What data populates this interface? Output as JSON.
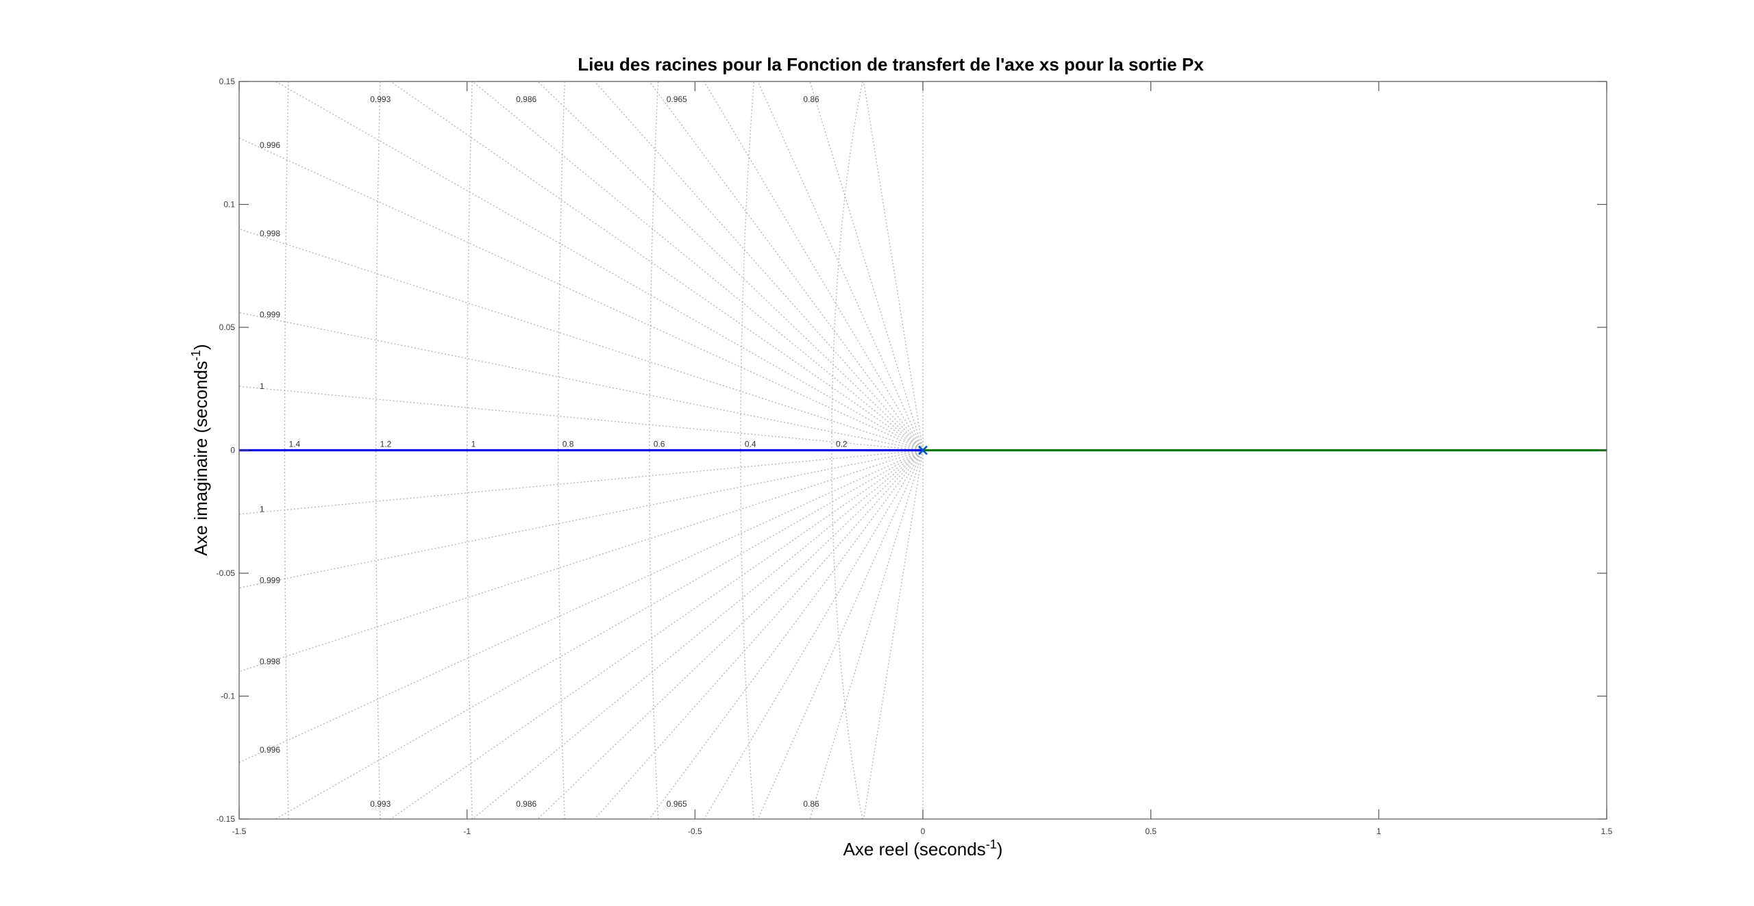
{
  "chart_data": {
    "type": "line",
    "title": "Lieu des racines pour la Fonction de transfert de l'axe xs pour la sortie Px",
    "xlabel": "Axe reel (seconds",
    "xlabel_exp": "-1",
    "xlabel_close": ")",
    "ylabel": "Axe imaginaire (seconds",
    "ylabel_exp": "-1",
    "ylabel_close": ")",
    "xlim": [
      -1.5,
      1.5
    ],
    "ylim": [
      -0.15,
      0.15
    ],
    "xticks": [
      -1.5,
      -1,
      -0.5,
      0,
      0.5,
      1,
      1.5
    ],
    "xtick_labels": [
      "-1.5",
      "-1",
      "-0.5",
      "0",
      "0.5",
      "1",
      "1.5"
    ],
    "yticks": [
      -0.15,
      -0.1,
      -0.05,
      0,
      0.05,
      0.1,
      0.15
    ],
    "ytick_labels": [
      "-0.15",
      "-0.1",
      "-0.05",
      "0",
      "0.05",
      "0.1",
      "0.15"
    ],
    "series": [
      {
        "color": "#0000ee",
        "x": [
          -1.5,
          0
        ],
        "y": [
          0,
          0
        ]
      },
      {
        "color": "#007a00",
        "x": [
          0,
          1.5
        ],
        "y": [
          0,
          0
        ]
      }
    ],
    "poles": [
      {
        "x": 0,
        "y": 0,
        "marker": "x",
        "color": "#0050c8"
      }
    ],
    "grid": {
      "damping_values": [
        "0.86",
        "0.965",
        "0.986",
        "0.993",
        "0.996",
        "0.998",
        "0.999",
        "1"
      ],
      "damping_label_x": [
        -0.245,
        -0.54,
        -0.87,
        -1.19
      ],
      "side_damping_labels": [
        {
          "text": "0.996",
          "y": 0.123
        },
        {
          "text": "0.998",
          "y": 0.087
        },
        {
          "text": "0.999",
          "y": 0.054
        },
        {
          "text": "1",
          "y": 0.025
        },
        {
          "text": "1",
          "y": -0.025
        },
        {
          "text": "0.999",
          "y": -0.054
        },
        {
          "text": "0.998",
          "y": -0.087
        },
        {
          "text": "0.996",
          "y": -0.123
        }
      ],
      "frequency_values": [
        "1.4",
        "1.2",
        "1",
        "0.8",
        "0.6",
        "0.4",
        "0.2"
      ],
      "frequency_radii": [
        1.4,
        1.2,
        1.0,
        0.8,
        0.6,
        0.4,
        0.2
      ],
      "ray_endpoints_top": [
        [
          -0.13,
          0.15
        ],
        [
          -0.248,
          0.15
        ],
        [
          -0.362,
          0.15
        ],
        [
          -0.48,
          0.15
        ],
        [
          -0.6,
          0.15
        ],
        [
          -0.72,
          0.15
        ],
        [
          -0.845,
          0.15
        ],
        [
          -0.988,
          0.15
        ],
        [
          -1.168,
          0.15
        ],
        [
          -1.42,
          0.15
        ],
        [
          -1.5,
          0.127
        ],
        [
          -1.5,
          0.09
        ],
        [
          -1.5,
          0.056
        ],
        [
          -1.5,
          0.026
        ]
      ]
    }
  }
}
